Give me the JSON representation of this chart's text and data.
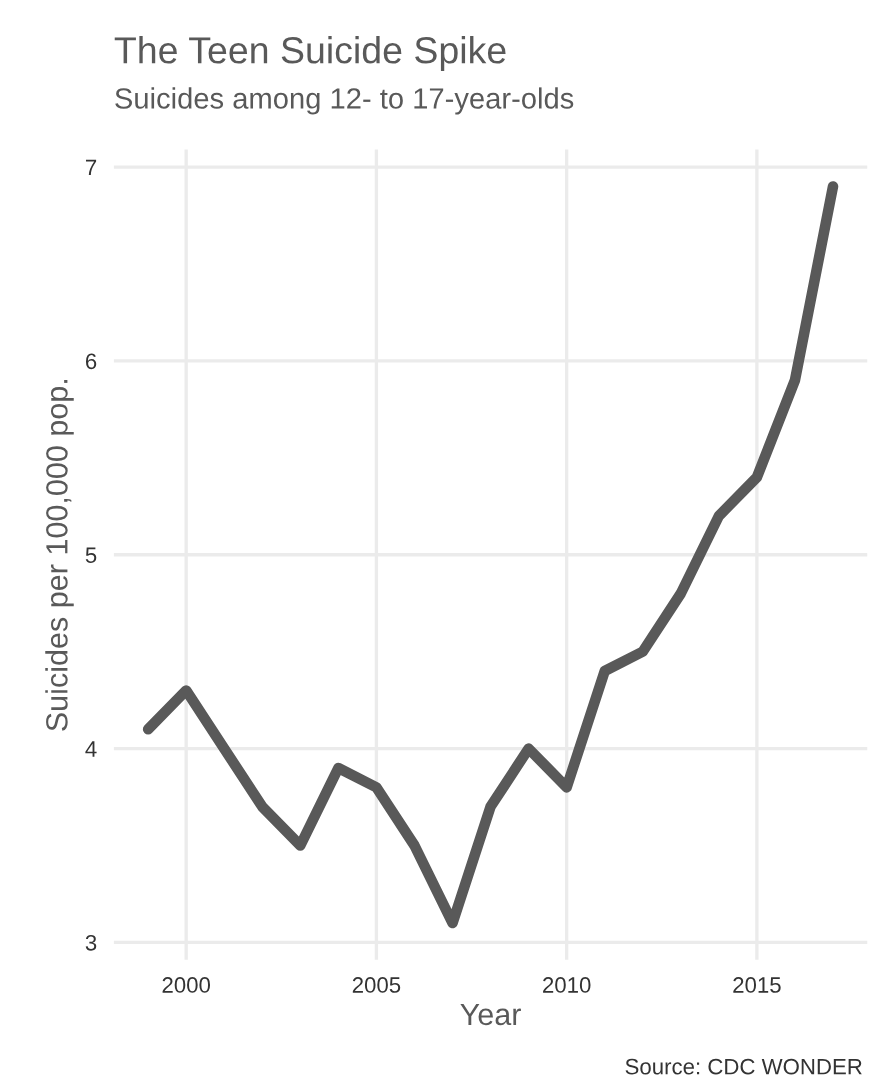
{
  "chart_data": {
    "type": "line",
    "title": "The Teen Suicide Spike",
    "subtitle": "Suicides among 12- to 17-year-olds",
    "xlabel": "Year",
    "ylabel": "Suicides per 100,000 pop.",
    "x": [
      1999,
      2000,
      2001,
      2002,
      2003,
      2004,
      2005,
      2006,
      2007,
      2008,
      2009,
      2010,
      2011,
      2012,
      2013,
      2014,
      2015,
      2016,
      2017
    ],
    "series": [
      {
        "color": "#595959",
        "values": [
          4.1,
          4.3,
          4.0,
          3.7,
          3.5,
          3.9,
          3.8,
          3.5,
          3.1,
          3.7,
          4.0,
          3.8,
          4.4,
          4.5,
          4.8,
          5.2,
          5.4,
          5.9,
          6.9
        ]
      }
    ],
    "xlim": [
      1998.1,
      2017.9
    ],
    "xticks": [
      2000,
      2005,
      2010,
      2015
    ],
    "ylim": [
      2.91,
      7.09
    ],
    "yticks": [
      3,
      4,
      5,
      6,
      7
    ],
    "grid": true,
    "line_style": "solid",
    "marker": "none",
    "annotations": [
      "Source: CDC WONDER"
    ]
  }
}
